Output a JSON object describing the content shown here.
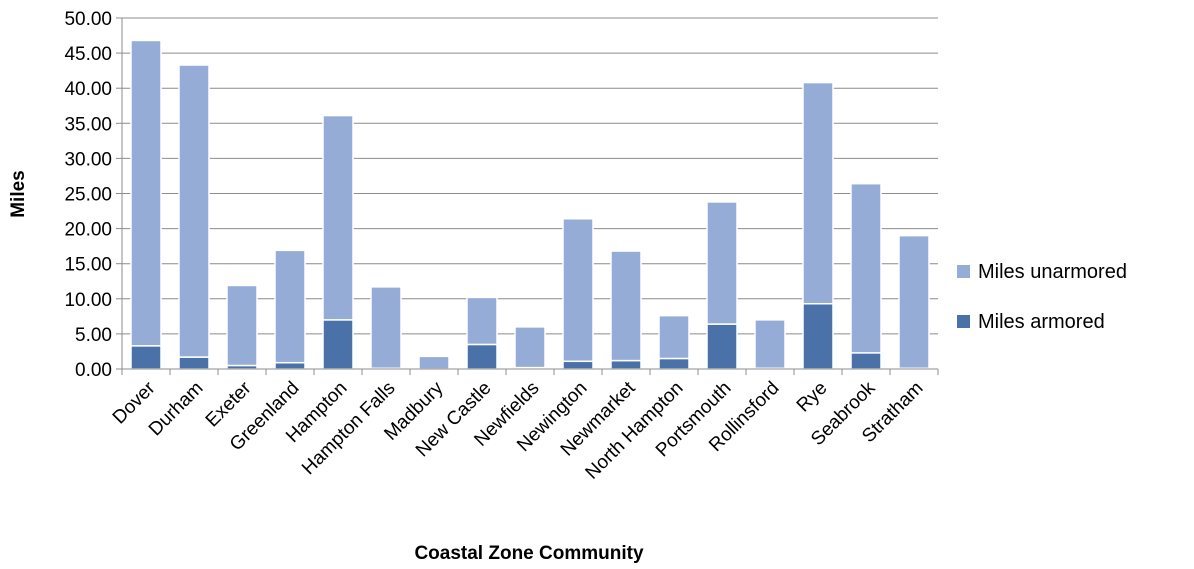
{
  "chart_data": {
    "type": "bar",
    "stacked": true,
    "categories": [
      "Dover",
      "Durham",
      "Exeter",
      "Greenland",
      "Hampton",
      "Hampton Falls",
      "Madbury",
      "New Castle",
      "Newfields",
      "Newington",
      "Newmarket",
      "North Hampton",
      "Portsmouth",
      "Rollinsford",
      "Rye",
      "Seabrook",
      "Stratham"
    ],
    "series": [
      {
        "name": "Miles armored",
        "color": "#4a72a8",
        "values": [
          3.3,
          1.7,
          0.5,
          0.9,
          7.0,
          0.1,
          0.0,
          3.5,
          0.2,
          1.1,
          1.2,
          1.5,
          6.4,
          0.1,
          9.3,
          2.3,
          0.1
        ]
      },
      {
        "name": "Miles unarmored",
        "color": "#94acd6",
        "values": [
          43.5,
          41.6,
          11.4,
          16.0,
          29.1,
          11.6,
          1.8,
          6.7,
          5.8,
          20.3,
          15.6,
          6.1,
          17.4,
          6.9,
          31.5,
          24.1,
          18.9
        ]
      }
    ],
    "title": "",
    "xlabel": "Coastal Zone Community",
    "ylabel": "Miles",
    "ylim": [
      0,
      50
    ],
    "yticks": [
      "0.00",
      "5.00",
      "10.00",
      "15.00",
      "20.00",
      "25.00",
      "30.00",
      "35.00",
      "40.00",
      "45.00",
      "50.00"
    ],
    "grid": true,
    "legend_position": "right"
  }
}
